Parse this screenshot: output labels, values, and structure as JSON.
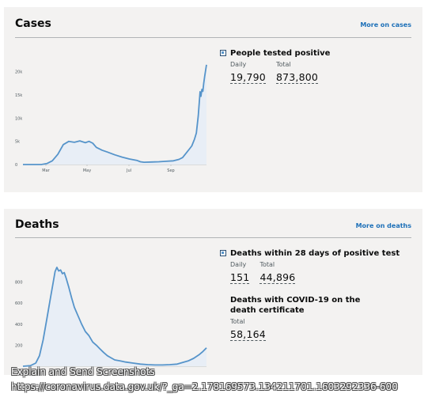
{
  "cases": {
    "title": "Cases",
    "more_link": "More on cases",
    "metric": {
      "heading": "People tested positive",
      "daily_label": "Daily",
      "daily_value": "19,790",
      "total_label": "Total",
      "total_value": "873,800"
    },
    "chart_data": {
      "type": "area",
      "x_tick_labels": [
        "Mar",
        "May",
        "Jul",
        "Sep"
      ],
      "y_tick_labels": [
        "0",
        "5k",
        "10k",
        "15k",
        "20k"
      ],
      "y_ticks": [
        0,
        5000,
        10000,
        15000,
        20000
      ],
      "ylim": [
        0,
        22000
      ],
      "x_range": [
        0,
        1
      ],
      "series": [
        {
          "color": "#5694ca",
          "fill": "#e8eef6",
          "points": [
            [
              0,
              0
            ],
            [
              0.04,
              0
            ],
            [
              0.1,
              0
            ],
            [
              0.13,
              200
            ],
            [
              0.16,
              800
            ],
            [
              0.19,
              2200
            ],
            [
              0.22,
              4300
            ],
            [
              0.25,
              5000
            ],
            [
              0.28,
              4800
            ],
            [
              0.31,
              5100
            ],
            [
              0.34,
              4700
            ],
            [
              0.36,
              5000
            ],
            [
              0.38,
              4600
            ],
            [
              0.4,
              3700
            ],
            [
              0.43,
              3100
            ],
            [
              0.46,
              2700
            ],
            [
              0.5,
              2100
            ],
            [
              0.54,
              1600
            ],
            [
              0.58,
              1200
            ],
            [
              0.62,
              900
            ],
            [
              0.64,
              600
            ],
            [
              0.66,
              500
            ],
            [
              0.7,
              550
            ],
            [
              0.74,
              600
            ],
            [
              0.78,
              700
            ],
            [
              0.82,
              800
            ],
            [
              0.85,
              1100
            ],
            [
              0.87,
              1500
            ],
            [
              0.89,
              2500
            ],
            [
              0.91,
              3500
            ],
            [
              0.92,
              4000
            ],
            [
              0.935,
              5500
            ],
            [
              0.945,
              6800
            ],
            [
              0.955,
              10500
            ],
            [
              0.965,
              15700
            ],
            [
              0.97,
              14700
            ],
            [
              0.975,
              16200
            ],
            [
              0.98,
              15800
            ],
            [
              0.985,
              17500
            ],
            [
              0.99,
              19000
            ],
            [
              1,
              21500
            ]
          ]
        }
      ]
    }
  },
  "deaths": {
    "title": "Deaths",
    "more_link": "More on deaths",
    "metric1": {
      "heading": "Deaths within 28 days of positive test",
      "daily_label": "Daily",
      "daily_value": "151",
      "total_label": "Total",
      "total_value": "44,896"
    },
    "metric2": {
      "heading": "Deaths with COVID-19 on the death certificate",
      "total_label": "Total",
      "total_value": "58,164"
    },
    "chart_data": {
      "type": "area",
      "y_tick_labels": [
        "200",
        "400",
        "600",
        "800"
      ],
      "y_ticks": [
        200,
        400,
        600,
        800
      ],
      "ylim": [
        0,
        1000
      ],
      "x_range": [
        0,
        1
      ],
      "series": [
        {
          "color": "#5694ca",
          "fill": "#e8eef6",
          "points": [
            [
              0,
              0
            ],
            [
              0.04,
              5
            ],
            [
              0.07,
              30
            ],
            [
              0.09,
              100
            ],
            [
              0.11,
              250
            ],
            [
              0.13,
              450
            ],
            [
              0.15,
              650
            ],
            [
              0.165,
              800
            ],
            [
              0.175,
              900
            ],
            [
              0.185,
              940
            ],
            [
              0.195,
              905
            ],
            [
              0.205,
              915
            ],
            [
              0.215,
              880
            ],
            [
              0.225,
              890
            ],
            [
              0.235,
              840
            ],
            [
              0.25,
              750
            ],
            [
              0.265,
              650
            ],
            [
              0.28,
              560
            ],
            [
              0.3,
              480
            ],
            [
              0.32,
              400
            ],
            [
              0.34,
              330
            ],
            [
              0.36,
              290
            ],
            [
              0.38,
              230
            ],
            [
              0.4,
              200
            ],
            [
              0.42,
              165
            ],
            [
              0.44,
              130
            ],
            [
              0.46,
              100
            ],
            [
              0.48,
              80
            ],
            [
              0.5,
              60
            ],
            [
              0.53,
              50
            ],
            [
              0.56,
              40
            ],
            [
              0.6,
              30
            ],
            [
              0.64,
              20
            ],
            [
              0.68,
              15
            ],
            [
              0.72,
              12
            ],
            [
              0.76,
              12
            ],
            [
              0.8,
              15
            ],
            [
              0.84,
              20
            ],
            [
              0.87,
              35
            ],
            [
              0.9,
              50
            ],
            [
              0.93,
              75
            ],
            [
              0.96,
              110
            ],
            [
              0.98,
              140
            ],
            [
              1,
              175
            ]
          ]
        }
      ]
    }
  },
  "overlay": {
    "line1": "Explain and Send Screenshots",
    "line2": "https://coronavirus.data.gov.uk/?_ga=2.178169573.134211701.1603292336-600"
  }
}
